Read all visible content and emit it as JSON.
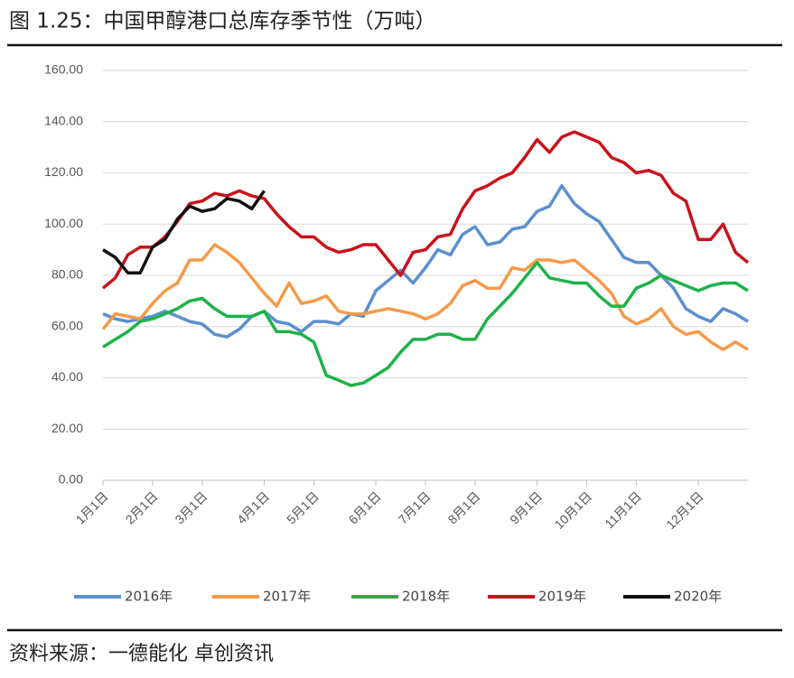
{
  "chart_data": {
    "type": "line",
    "title": "图 1.25：中国甲醇港口总库存季节性（万吨）",
    "source": "资料来源：一德能化 卓创资讯",
    "categories": [
      "1月1日",
      null,
      null,
      null,
      "2月1日",
      null,
      null,
      null,
      "3月1日",
      null,
      null,
      null,
      null,
      "4月1日",
      null,
      null,
      null,
      "5月1日",
      null,
      null,
      null,
      null,
      "6月1日",
      null,
      null,
      null,
      "7月1日",
      null,
      null,
      null,
      "8月1日",
      null,
      null,
      null,
      null,
      "9月1日",
      null,
      null,
      null,
      "10月1日",
      null,
      null,
      null,
      "11月1日",
      null,
      null,
      null,
      null,
      "12月1日",
      null,
      null,
      null,
      null
    ],
    "ylim": [
      0,
      160
    ],
    "yticks": [
      {
        "value": 0,
        "label": "0.00"
      },
      {
        "value": 20,
        "label": "20.00"
      },
      {
        "value": 40,
        "label": "40.00"
      },
      {
        "value": 60,
        "label": "60.00"
      },
      {
        "value": 80,
        "label": "80.00"
      },
      {
        "value": 100,
        "label": "100.00"
      },
      {
        "value": 120,
        "label": "120.00"
      },
      {
        "value": 140,
        "label": "140.00"
      },
      {
        "value": 160,
        "label": "160.00"
      }
    ],
    "grid": true,
    "legend": "bottom",
    "series": [
      {
        "name": "2016年",
        "color": "#5b8fd0",
        "values": [
          65,
          63,
          62,
          63,
          64,
          66,
          64,
          62,
          61,
          57,
          56,
          59,
          64,
          66,
          62,
          61,
          58,
          62,
          62,
          61,
          65,
          64,
          74,
          78,
          82,
          77,
          83,
          90,
          88,
          96,
          99,
          92,
          93,
          98,
          99,
          105,
          107,
          115,
          108,
          104,
          101,
          94,
          87,
          85,
          85,
          80,
          75,
          67,
          64,
          62,
          67,
          65,
          62
        ]
      },
      {
        "name": "2017年",
        "color": "#f59a4a",
        "values": [
          59,
          65,
          64,
          63,
          69,
          74,
          77,
          86,
          86,
          92,
          89,
          85,
          79,
          73,
          68,
          77,
          69,
          70,
          72,
          66,
          65,
          65,
          66,
          67,
          66,
          65,
          63,
          65,
          69,
          76,
          78,
          75,
          75,
          83,
          82,
          86,
          86,
          85,
          86,
          82,
          78,
          73,
          64,
          61,
          63,
          67,
          60,
          57,
          58,
          54,
          51,
          54,
          51
        ]
      },
      {
        "name": "2018年",
        "color": "#1eb24a",
        "values": [
          52,
          55,
          58,
          62,
          63,
          65,
          67,
          70,
          71,
          67,
          64,
          64,
          64,
          66,
          58,
          58,
          57,
          54,
          41,
          39,
          37,
          38,
          41,
          44,
          50,
          55,
          55,
          57,
          57,
          55,
          55,
          63,
          68,
          73,
          79,
          85,
          79,
          78,
          77,
          77,
          72,
          68,
          68,
          75,
          77,
          80,
          78,
          76,
          74,
          76,
          77,
          77,
          74
        ]
      },
      {
        "name": "2019年",
        "color": "#c9121b",
        "values": [
          75,
          79,
          88,
          91,
          91,
          95,
          101,
          108,
          109,
          112,
          111,
          113,
          111,
          110,
          104,
          99,
          95,
          95,
          91,
          89,
          90,
          92,
          92,
          86,
          80,
          89,
          90,
          95,
          96,
          106,
          113,
          115,
          118,
          120,
          126,
          133,
          128,
          134,
          136,
          134,
          132,
          126,
          124,
          120,
          121,
          119,
          112,
          109,
          94,
          94,
          100,
          89,
          85
        ]
      },
      {
        "name": "2020年",
        "color": "#111111",
        "values": [
          90,
          87,
          81,
          81,
          91,
          94,
          102,
          107,
          105,
          106,
          110,
          109,
          106,
          113,
          null,
          null,
          null,
          null,
          null,
          null,
          null,
          null,
          null,
          null,
          null,
          null,
          null,
          null,
          null,
          null,
          null,
          null,
          null,
          null,
          null,
          null,
          null,
          null,
          null,
          null,
          null,
          null,
          null,
          null,
          null,
          null,
          null,
          null,
          null,
          null,
          null,
          null,
          null
        ]
      }
    ]
  }
}
